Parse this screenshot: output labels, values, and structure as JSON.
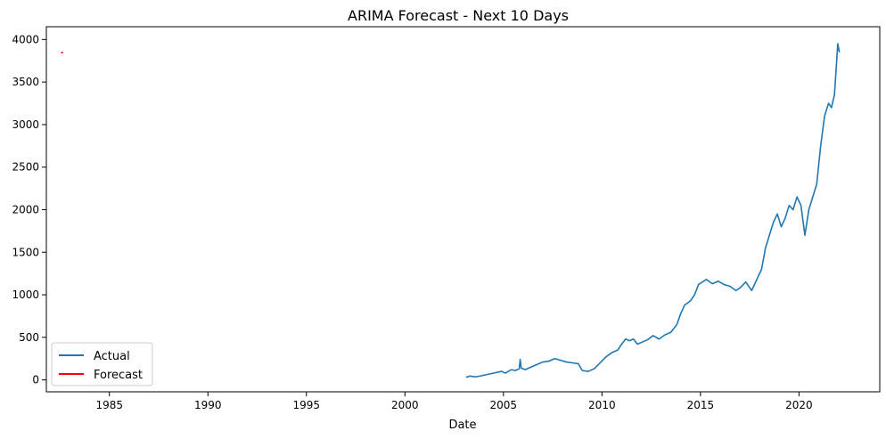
{
  "chart_data": {
    "type": "line",
    "title": "ARIMA Forecast - Next 10 Days",
    "xlabel": "Date",
    "ylabel": "",
    "xlim": [
      1981.8,
      2024.1
    ],
    "ylim": [
      -140,
      4150
    ],
    "x_ticks": [
      1985,
      1990,
      1995,
      2000,
      2005,
      2010,
      2015,
      2020
    ],
    "y_ticks": [
      0,
      500,
      1000,
      1500,
      2000,
      2500,
      3000,
      3500,
      4000
    ],
    "grid": false,
    "legend": {
      "placement": "lower-left",
      "entries": [
        "Actual",
        "Forecast"
      ]
    },
    "series": [
      {
        "name": "Actual",
        "color": "#1f77b4",
        "points": [
          [
            2003.1,
            30
          ],
          [
            2003.3,
            45
          ],
          [
            2003.6,
            35
          ],
          [
            2004.0,
            55
          ],
          [
            2004.5,
            80
          ],
          [
            2004.9,
            100
          ],
          [
            2005.1,
            80
          ],
          [
            2005.4,
            120
          ],
          [
            2005.6,
            110
          ],
          [
            2005.8,
            130
          ],
          [
            2005.85,
            240
          ],
          [
            2005.9,
            140
          ],
          [
            2006.1,
            120
          ],
          [
            2006.4,
            150
          ],
          [
            2006.7,
            180
          ],
          [
            2007.0,
            210
          ],
          [
            2007.3,
            220
          ],
          [
            2007.6,
            250
          ],
          [
            2007.9,
            230
          ],
          [
            2008.2,
            210
          ],
          [
            2008.5,
            200
          ],
          [
            2008.8,
            190
          ],
          [
            2009.0,
            110
          ],
          [
            2009.3,
            100
          ],
          [
            2009.6,
            130
          ],
          [
            2009.9,
            200
          ],
          [
            2010.2,
            270
          ],
          [
            2010.5,
            320
          ],
          [
            2010.8,
            350
          ],
          [
            2011.0,
            420
          ],
          [
            2011.2,
            480
          ],
          [
            2011.4,
            460
          ],
          [
            2011.6,
            480
          ],
          [
            2011.8,
            420
          ],
          [
            2012.0,
            440
          ],
          [
            2012.3,
            470
          ],
          [
            2012.6,
            520
          ],
          [
            2012.9,
            480
          ],
          [
            2013.2,
            530
          ],
          [
            2013.5,
            560
          ],
          [
            2013.8,
            650
          ],
          [
            2014.0,
            780
          ],
          [
            2014.2,
            880
          ],
          [
            2014.5,
            930
          ],
          [
            2014.7,
            1000
          ],
          [
            2014.9,
            1120
          ],
          [
            2015.1,
            1150
          ],
          [
            2015.3,
            1180
          ],
          [
            2015.6,
            1130
          ],
          [
            2015.9,
            1160
          ],
          [
            2016.2,
            1120
          ],
          [
            2016.5,
            1100
          ],
          [
            2016.8,
            1050
          ],
          [
            2017.0,
            1080
          ],
          [
            2017.3,
            1150
          ],
          [
            2017.6,
            1050
          ],
          [
            2017.9,
            1200
          ],
          [
            2018.1,
            1300
          ],
          [
            2018.3,
            1550
          ],
          [
            2018.5,
            1700
          ],
          [
            2018.7,
            1850
          ],
          [
            2018.9,
            1950
          ],
          [
            2019.1,
            1800
          ],
          [
            2019.3,
            1900
          ],
          [
            2019.5,
            2050
          ],
          [
            2019.7,
            2000
          ],
          [
            2019.9,
            2150
          ],
          [
            2020.1,
            2050
          ],
          [
            2020.3,
            1700
          ],
          [
            2020.5,
            2000
          ],
          [
            2020.7,
            2150
          ],
          [
            2020.9,
            2300
          ],
          [
            2021.1,
            2750
          ],
          [
            2021.3,
            3100
          ],
          [
            2021.5,
            3250
          ],
          [
            2021.65,
            3200
          ],
          [
            2021.8,
            3350
          ],
          [
            2021.9,
            3700
          ],
          [
            2021.97,
            3950
          ],
          [
            2022.05,
            3850
          ]
        ]
      },
      {
        "name": "Forecast",
        "color": "#ff0000",
        "points": [
          [
            1982.55,
            3845
          ],
          [
            1982.6,
            3846
          ],
          [
            1982.65,
            3847
          ]
        ]
      }
    ]
  }
}
